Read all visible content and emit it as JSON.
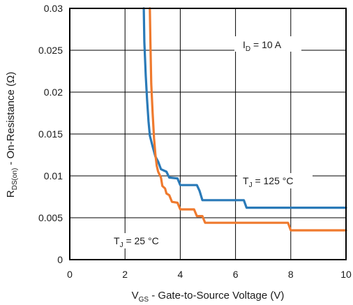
{
  "chart_data": {
    "type": "line",
    "title": "",
    "xlabel": {
      "main": "V",
      "sub": "GS",
      "rest": " - Gate-to-Source Voltage (V)"
    },
    "ylabel": {
      "main": "R",
      "sub": "DS(on)",
      "rest": " - On-Resistance (Ω)"
    },
    "xlim": [
      0,
      10
    ],
    "ylim": [
      0,
      0.03
    ],
    "x_ticks": [
      0,
      2,
      4,
      6,
      8,
      10
    ],
    "y_ticks": [
      0,
      0.005,
      0.01,
      0.015,
      0.02,
      0.025,
      0.03
    ],
    "x_tick_labels": [
      "0",
      "2",
      "4",
      "6",
      "8",
      "10"
    ],
    "y_tick_labels": [
      "0",
      "0.005",
      "0.01",
      "0.015",
      "0.02",
      "0.025",
      "0.03"
    ],
    "grid": true,
    "series": [
      {
        "name": "TJ = 125 °C",
        "color": "#2a7ab8",
        "points": [
          [
            2.68,
            0.03
          ],
          [
            2.7,
            0.026
          ],
          [
            2.75,
            0.022
          ],
          [
            2.8,
            0.019
          ],
          [
            2.85,
            0.0165
          ],
          [
            2.9,
            0.0148
          ],
          [
            3.0,
            0.0135
          ],
          [
            3.1,
            0.0123
          ],
          [
            3.2,
            0.0117
          ],
          [
            3.3,
            0.0108
          ],
          [
            3.5,
            0.0105
          ],
          [
            3.6,
            0.0098
          ],
          [
            3.9,
            0.0097
          ],
          [
            4.0,
            0.0089
          ],
          [
            4.6,
            0.0089
          ],
          [
            4.7,
            0.0082
          ],
          [
            4.8,
            0.0071
          ],
          [
            6.3,
            0.0071
          ],
          [
            6.4,
            0.0062
          ],
          [
            10.0,
            0.0062
          ]
        ]
      },
      {
        "name": "TJ = 25 °C",
        "color": "#ef7a2e",
        "points": [
          [
            2.9,
            0.03
          ],
          [
            2.92,
            0.026
          ],
          [
            2.95,
            0.021
          ],
          [
            3.0,
            0.0175
          ],
          [
            3.05,
            0.0145
          ],
          [
            3.1,
            0.0125
          ],
          [
            3.15,
            0.0112
          ],
          [
            3.2,
            0.0105
          ],
          [
            3.3,
            0.0098
          ],
          [
            3.35,
            0.0088
          ],
          [
            3.45,
            0.0085
          ],
          [
            3.5,
            0.0079
          ],
          [
            3.6,
            0.0077
          ],
          [
            3.7,
            0.0069
          ],
          [
            3.9,
            0.0068
          ],
          [
            4.0,
            0.006
          ],
          [
            4.5,
            0.006
          ],
          [
            4.6,
            0.0052
          ],
          [
            4.8,
            0.0052
          ],
          [
            4.9,
            0.0044
          ],
          [
            7.9,
            0.0044
          ],
          [
            8.0,
            0.0035
          ],
          [
            10.0,
            0.0035
          ]
        ]
      }
    ],
    "annotations": [
      {
        "main": "I",
        "sub": "D",
        "rest": " = 10 A"
      },
      {
        "main": "T",
        "sub": "J",
        "rest": " = 125 °C"
      },
      {
        "main": "T",
        "sub": "J",
        "rest": " = 25 °C"
      }
    ]
  }
}
